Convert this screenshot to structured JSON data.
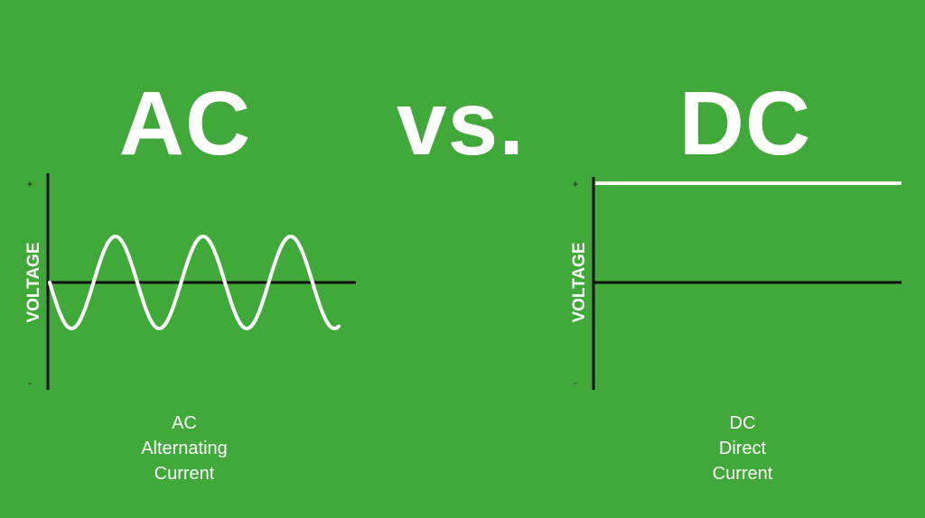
{
  "titles": {
    "ac": "AC",
    "vs": "vs.",
    "dc": "DC"
  },
  "ac_chart": {
    "axis_label": "VOLTAGE",
    "plus": "+",
    "minus": "-",
    "waveform": "sine",
    "cycles": 3.3,
    "caption": {
      "line1": "AC",
      "line2": "Alternating",
      "line3": "Current"
    }
  },
  "dc_chart": {
    "axis_label": "VOLTAGE",
    "plus": "+",
    "minus": "-",
    "waveform": "constant-positive",
    "caption": {
      "line1": "DC",
      "line2": "Direct",
      "line3": "Current"
    }
  },
  "colors": {
    "background": "#41a93a",
    "signal": "#ffffff",
    "axis": "#111111"
  }
}
